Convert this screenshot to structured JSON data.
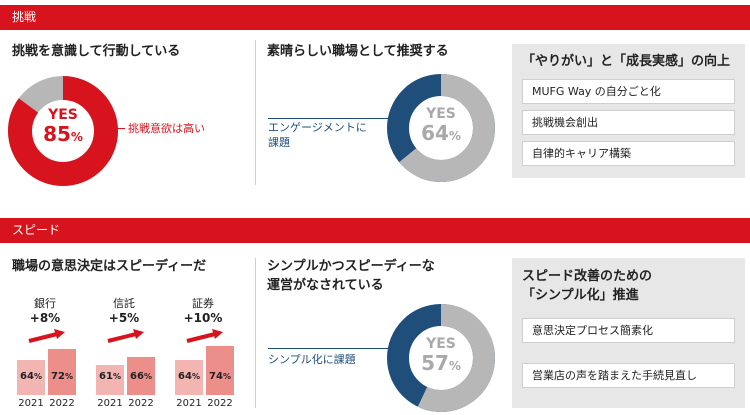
{
  "sections": {
    "challenge": "挑戦",
    "speed": "スピード"
  },
  "colors": {
    "red": "#d7141e",
    "navy": "#1f4e7a",
    "gray": "#b7b7b7"
  },
  "challenge": {
    "q1_title": "挑戦を意識して行動している",
    "q1_yes": "YES",
    "q1_pct": "85",
    "q1_note": "挑戦意欲は高い",
    "q2_title": "素晴らしい職場として推奨する",
    "q2_yes": "YES",
    "q2_pct": "64",
    "q2_note1": "エンゲージメントに",
    "q2_note2": "課題",
    "panel_title": "「やりがい」と「成長実感」の向上",
    "panel_items": [
      "MUFG Way の自分ごと化",
      "挑戦機会創出",
      "自律的キャリア構築"
    ]
  },
  "speed": {
    "q1_title": "職場の意思決定はスピーディーだ",
    "banks": [
      {
        "name": "銀行",
        "delta": "+8",
        "v2021": "64",
        "v2022": "72"
      },
      {
        "name": "信託",
        "delta": "+5",
        "v2021": "61",
        "v2022": "66"
      },
      {
        "name": "証券",
        "delta": "+10",
        "v2021": "64",
        "v2022": "74"
      }
    ],
    "year1": "2021",
    "year2": "2022",
    "q2_title1": "シンプルかつスピーディーな",
    "q2_title2": "運営がなされている",
    "q2_yes": "YES",
    "q2_pct": "57",
    "q2_note": "シンプル化に課題",
    "panel_title1": "スピード改善のための",
    "panel_title2": "「シンプル化」推進",
    "panel_items": [
      "意思決定プロセス簡素化",
      "営業店の声を踏まえた手続見直し"
    ]
  },
  "chart_data": [
    {
      "type": "pie",
      "title": "挑戦を意識して行動している",
      "categories": [
        "YES",
        ""
      ],
      "values": [
        85,
        15
      ]
    },
    {
      "type": "pie",
      "title": "素晴らしい職場として推奨する",
      "categories": [
        "YES",
        ""
      ],
      "values": [
        64,
        36
      ]
    },
    {
      "type": "bar",
      "title": "職場の意思決定はスピーディーだ",
      "categories": [
        "銀行",
        "信託",
        "証券"
      ],
      "series": [
        {
          "name": "2021",
          "values": [
            64,
            61,
            64
          ]
        },
        {
          "name": "2022",
          "values": [
            72,
            66,
            74
          ]
        }
      ]
    },
    {
      "type": "pie",
      "title": "シンプルかつスピーディーな運営がなされている",
      "categories": [
        "YES",
        ""
      ],
      "values": [
        57,
        43
      ]
    }
  ]
}
